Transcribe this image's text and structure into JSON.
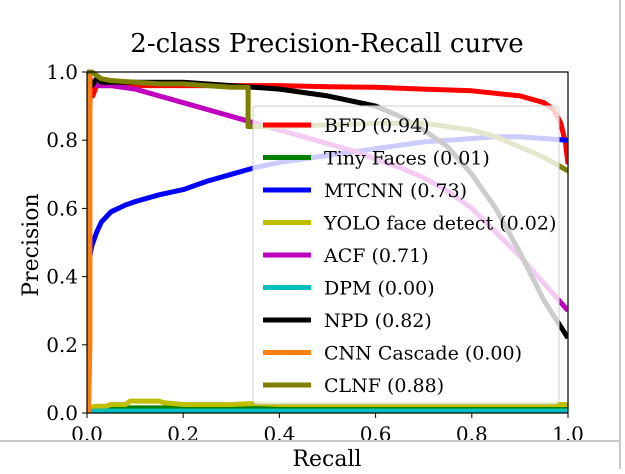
{
  "chart_data": {
    "type": "line",
    "title": "2-class Precision-Recall curve",
    "xlabel": "Recall",
    "ylabel": "Precision",
    "xlim": [
      0.0,
      1.0
    ],
    "ylim": [
      0.0,
      1.0
    ],
    "xticks": [
      "0.0",
      "0.2",
      "0.4",
      "0.6",
      "0.8",
      "1.0"
    ],
    "yticks": [
      "0.0",
      "0.2",
      "0.4",
      "0.6",
      "0.8",
      "1.0"
    ],
    "grid": false,
    "legend_position": "center-right",
    "series": [
      {
        "name": "BFD (0.94)",
        "color": "#ff0000",
        "x": [
          0.0,
          0.003,
          0.006,
          0.008,
          0.01,
          0.012,
          0.02,
          0.05,
          0.1,
          0.2,
          0.3,
          0.4,
          0.5,
          0.6,
          0.7,
          0.8,
          0.9,
          0.95,
          0.97,
          0.985,
          0.995,
          1.0
        ],
        "y": [
          0.01,
          0.88,
          0.9,
          0.97,
          0.97,
          0.93,
          0.96,
          0.96,
          0.96,
          0.96,
          0.96,
          0.96,
          0.957,
          0.955,
          0.95,
          0.945,
          0.93,
          0.91,
          0.89,
          0.85,
          0.79,
          0.73
        ]
      },
      {
        "name": "Tiny Faces (0.01)",
        "color": "#008000",
        "x": [
          0.0,
          0.02,
          0.02,
          0.1,
          0.2,
          0.3,
          0.4,
          0.5,
          0.6,
          0.7,
          0.8,
          0.9,
          1.0
        ],
        "y": [
          0.01,
          0.01,
          0.015,
          0.015,
          0.015,
          0.015,
          0.015,
          0.015,
          0.015,
          0.015,
          0.015,
          0.015,
          0.015
        ]
      },
      {
        "name": "MTCNN (0.73)",
        "color": "#0000ff",
        "x": [
          0.0,
          0.003,
          0.006,
          0.01,
          0.02,
          0.03,
          0.05,
          0.08,
          0.1,
          0.15,
          0.2,
          0.25,
          0.3,
          0.35,
          0.4,
          0.45,
          0.5,
          0.55,
          0.6,
          0.65,
          0.7,
          0.75,
          0.8,
          0.85,
          0.9,
          0.95,
          1.0
        ],
        "y": [
          0.36,
          0.42,
          0.46,
          0.49,
          0.53,
          0.56,
          0.59,
          0.61,
          0.62,
          0.64,
          0.655,
          0.68,
          0.7,
          0.72,
          0.735,
          0.745,
          0.755,
          0.765,
          0.775,
          0.785,
          0.795,
          0.8,
          0.805,
          0.81,
          0.81,
          0.805,
          0.8
        ]
      },
      {
        "name": "YOLO face detect (0.02)",
        "color": "#bfbf00",
        "x": [
          0.0,
          0.02,
          0.04,
          0.05,
          0.08,
          0.09,
          0.15,
          0.16,
          0.2,
          0.3,
          0.35,
          0.4,
          0.5,
          0.6,
          0.7,
          0.8,
          0.9,
          1.0
        ],
        "y": [
          0.015,
          0.02,
          0.02,
          0.025,
          0.025,
          0.035,
          0.035,
          0.03,
          0.025,
          0.025,
          0.028,
          0.025,
          0.025,
          0.025,
          0.025,
          0.025,
          0.025,
          0.025
        ]
      },
      {
        "name": "ACF (0.71)",
        "color": "#bf00bf",
        "x": [
          0.0,
          0.01,
          0.02,
          0.05,
          0.1,
          0.15,
          0.2,
          0.25,
          0.3,
          0.35,
          0.4,
          0.45,
          0.5,
          0.55,
          0.6,
          0.65,
          0.7,
          0.75,
          0.8,
          0.85,
          0.9,
          0.95,
          1.0
        ],
        "y": [
          1.0,
          0.97,
          0.96,
          0.96,
          0.95,
          0.93,
          0.91,
          0.89,
          0.87,
          0.85,
          0.83,
          0.81,
          0.79,
          0.77,
          0.745,
          0.72,
          0.69,
          0.65,
          0.6,
          0.53,
          0.46,
          0.38,
          0.3
        ]
      },
      {
        "name": "DPM (0.00)",
        "color": "#00bfbf",
        "x": [
          0.0,
          0.005,
          0.05,
          0.5,
          1.0
        ],
        "y": [
          0.0,
          0.005,
          0.006,
          0.006,
          0.006
        ]
      },
      {
        "name": "NPD (0.82)",
        "color": "#000000",
        "x": [
          0.0,
          0.01,
          0.02,
          0.03,
          0.05,
          0.1,
          0.2,
          0.3,
          0.4,
          0.5,
          0.55,
          0.6,
          0.65,
          0.7,
          0.75,
          0.8,
          0.85,
          0.9,
          0.95,
          1.0
        ],
        "y": [
          1.0,
          0.96,
          0.98,
          0.97,
          0.97,
          0.97,
          0.97,
          0.96,
          0.95,
          0.93,
          0.915,
          0.9,
          0.87,
          0.83,
          0.78,
          0.7,
          0.6,
          0.47,
          0.33,
          0.22
        ]
      },
      {
        "name": "CNN Cascade (0.00)",
        "color": "#ff7f0e",
        "x": [
          0.0,
          0.003,
          0.006,
          0.006
        ],
        "y": [
          0.0,
          0.0,
          0.2,
          1.0
        ]
      },
      {
        "name": "CLNF (0.88)",
        "color": "#808000",
        "x": [
          0.0,
          0.01,
          0.02,
          0.03,
          0.05,
          0.1,
          0.15,
          0.2,
          0.25,
          0.3,
          0.335,
          0.335,
          0.4,
          0.5,
          0.6,
          0.7,
          0.8,
          0.85,
          0.9,
          0.95,
          1.0
        ],
        "y": [
          1.0,
          1.0,
          0.99,
          0.98,
          0.975,
          0.97,
          0.965,
          0.965,
          0.96,
          0.955,
          0.955,
          0.84,
          0.84,
          0.845,
          0.85,
          0.85,
          0.83,
          0.81,
          0.78,
          0.75,
          0.71
        ]
      }
    ]
  }
}
